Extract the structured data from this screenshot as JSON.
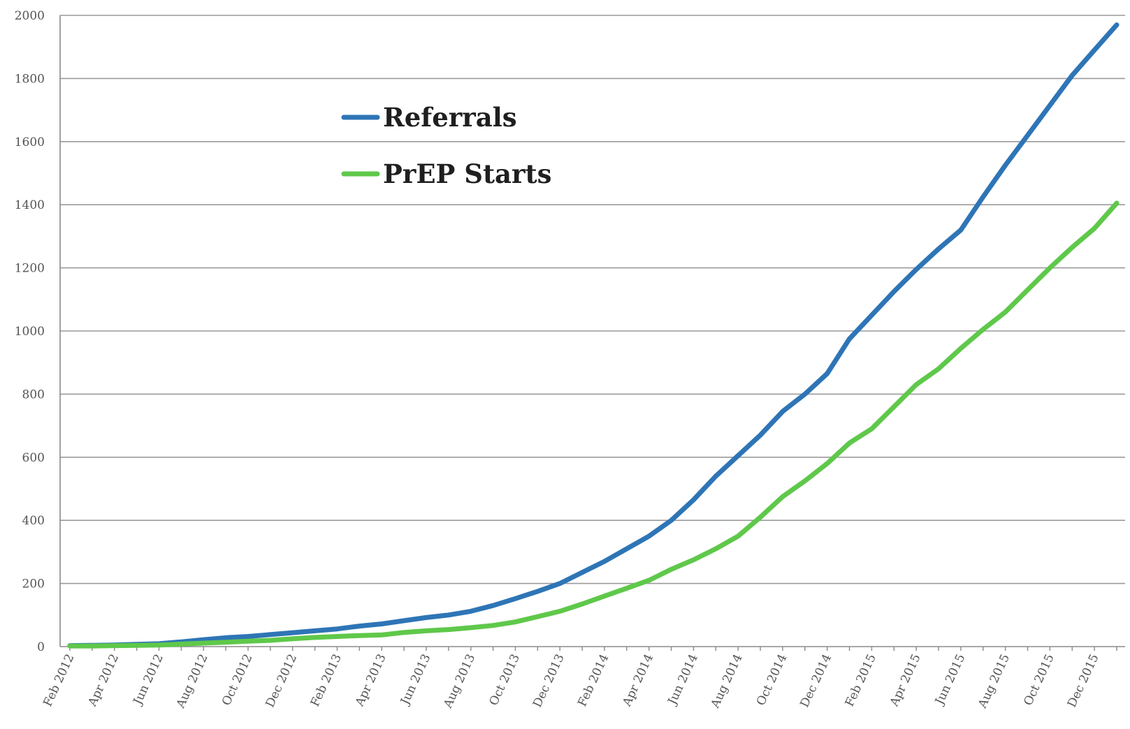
{
  "chart_data": {
    "type": "line",
    "title": "",
    "xlabel": "",
    "ylabel": "",
    "ylim": [
      0,
      2000
    ],
    "y_ticks": [
      "0",
      "200",
      "400",
      "600",
      "800",
      "1000",
      "1200",
      "1400",
      "1600",
      "1800",
      "2000"
    ],
    "x_tick_labels": [
      "Feb 2012",
      "Apr 2012",
      "Jun 2012",
      "Aug 2012",
      "Oct 2012",
      "Dec 2012",
      "Feb 2013",
      "Apr 2013",
      "Jun 2013",
      "Aug 2013",
      "Oct 2013",
      "Dec 2013",
      "Feb 2014",
      "Apr 2014",
      "Jun 2014",
      "Aug 2014",
      "Oct 2014",
      "Dec 2014",
      "Feb 2015",
      "Apr 2015",
      "Jun 2015",
      "Aug 2015",
      "Oct 2015",
      "Dec 2015"
    ],
    "x": [
      "Feb 2012",
      "Mar 2012",
      "Apr 2012",
      "May 2012",
      "Jun 2012",
      "Jul 2012",
      "Aug 2012",
      "Sep 2012",
      "Oct 2012",
      "Nov 2012",
      "Dec 2012",
      "Jan 2013",
      "Feb 2013",
      "Mar 2013",
      "Apr 2013",
      "May 2013",
      "Jun 2013",
      "Jul 2013",
      "Aug 2013",
      "Sep 2013",
      "Oct 2013",
      "Nov 2013",
      "Dec 2013",
      "Jan 2014",
      "Feb 2014",
      "Mar 2014",
      "Apr 2014",
      "May 2014",
      "Jun 2014",
      "Jul 2014",
      "Aug 2014",
      "Sep 2014",
      "Oct 2014",
      "Nov 2014",
      "Dec 2014",
      "Jan 2015",
      "Feb 2015",
      "Mar 2015",
      "Apr 2015",
      "May 2015",
      "Jun 2015",
      "Jul 2015",
      "Aug 2015",
      "Sep 2015",
      "Oct 2015",
      "Nov 2015",
      "Dec 2015",
      "Jan 2016"
    ],
    "series": [
      {
        "name": "Referrals",
        "color": "#2e75b6",
        "values": [
          3,
          4,
          5,
          7,
          9,
          15,
          22,
          28,
          32,
          38,
          44,
          50,
          56,
          65,
          72,
          82,
          92,
          100,
          112,
          130,
          152,
          175,
          200,
          235,
          270,
          310,
          350,
          400,
          465,
          540,
          605,
          670,
          745,
          800,
          865,
          975,
          1050,
          1125,
          1195,
          1260,
          1320,
          1425,
          1525,
          1620,
          1715,
          1810,
          1890,
          1970
        ]
      },
      {
        "name": "PrEP Starts",
        "color": "#5fc84a",
        "values": [
          2,
          2,
          3,
          4,
          5,
          8,
          11,
          14,
          17,
          20,
          25,
          29,
          32,
          35,
          37,
          45,
          50,
          54,
          60,
          67,
          78,
          95,
          112,
          135,
          160,
          185,
          210,
          245,
          275,
          310,
          350,
          410,
          475,
          525,
          580,
          645,
          690,
          760,
          830,
          880,
          945,
          1005,
          1060,
          1130,
          1200,
          1265,
          1325,
          1405
        ]
      }
    ],
    "legend": {
      "position": "upper-left-center",
      "entries": [
        "Referrals",
        "PrEP Starts"
      ]
    },
    "grid": true
  }
}
